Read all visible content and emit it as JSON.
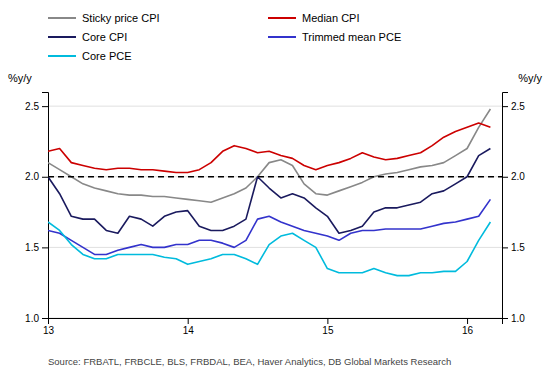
{
  "chart_data": {
    "type": "line",
    "ylabel": "%y/y",
    "y2label": "%y/y",
    "source": "Source: FRBATL, FRBCLE, BLS, FRBDAL, BEA, Haver Analytics, DB Global Markets Research",
    "x": [
      13.0,
      13.083,
      13.167,
      13.25,
      13.333,
      13.417,
      13.5,
      13.583,
      13.667,
      13.75,
      13.833,
      13.917,
      14.0,
      14.083,
      14.167,
      14.25,
      14.333,
      14.417,
      14.5,
      14.583,
      14.667,
      14.75,
      14.833,
      14.917,
      15.0,
      15.083,
      15.167,
      15.25,
      15.333,
      15.417,
      15.5,
      15.583,
      15.667,
      15.75,
      15.833,
      15.917,
      16.0,
      16.083,
      16.167
    ],
    "series": [
      {
        "name": "Sticky price CPI",
        "color": "#888888",
        "values": [
          2.1,
          2.05,
          2.0,
          1.95,
          1.92,
          1.9,
          1.88,
          1.87,
          1.87,
          1.86,
          1.86,
          1.85,
          1.84,
          1.83,
          1.82,
          1.85,
          1.88,
          1.92,
          2.0,
          2.1,
          2.12,
          2.08,
          1.95,
          1.88,
          1.87,
          1.9,
          1.93,
          1.96,
          2.0,
          2.02,
          2.03,
          2.05,
          2.07,
          2.08,
          2.1,
          2.15,
          2.2,
          2.35,
          2.48
        ]
      },
      {
        "name": "Median CPI",
        "color": "#cc0000",
        "values": [
          2.18,
          2.2,
          2.1,
          2.08,
          2.06,
          2.05,
          2.06,
          2.06,
          2.05,
          2.05,
          2.04,
          2.03,
          2.03,
          2.05,
          2.1,
          2.18,
          2.22,
          2.2,
          2.17,
          2.18,
          2.15,
          2.13,
          2.08,
          2.05,
          2.08,
          2.1,
          2.13,
          2.17,
          2.14,
          2.12,
          2.13,
          2.15,
          2.17,
          2.22,
          2.28,
          2.32,
          2.35,
          2.38,
          2.35
        ]
      },
      {
        "name": "Core CPI",
        "color": "#1a1a5e",
        "values": [
          2.0,
          1.88,
          1.72,
          1.7,
          1.7,
          1.62,
          1.6,
          1.72,
          1.7,
          1.65,
          1.72,
          1.75,
          1.76,
          1.65,
          1.62,
          1.62,
          1.65,
          1.7,
          2.0,
          1.92,
          1.85,
          1.88,
          1.85,
          1.78,
          1.72,
          1.6,
          1.62,
          1.65,
          1.75,
          1.78,
          1.78,
          1.8,
          1.82,
          1.88,
          1.9,
          1.95,
          2.0,
          2.15,
          2.2
        ]
      },
      {
        "name": "Trimmed mean PCE",
        "color": "#3333cc",
        "values": [
          1.62,
          1.6,
          1.55,
          1.5,
          1.45,
          1.45,
          1.48,
          1.5,
          1.52,
          1.5,
          1.5,
          1.52,
          1.52,
          1.55,
          1.55,
          1.53,
          1.5,
          1.55,
          1.7,
          1.72,
          1.68,
          1.65,
          1.62,
          1.6,
          1.58,
          1.55,
          1.6,
          1.62,
          1.62,
          1.63,
          1.63,
          1.63,
          1.63,
          1.65,
          1.67,
          1.68,
          1.7,
          1.72,
          1.84
        ]
      },
      {
        "name": "Core PCE",
        "color": "#00bbdd",
        "values": [
          1.68,
          1.62,
          1.52,
          1.45,
          1.42,
          1.42,
          1.45,
          1.45,
          1.45,
          1.45,
          1.43,
          1.42,
          1.38,
          1.4,
          1.42,
          1.45,
          1.45,
          1.42,
          1.38,
          1.52,
          1.58,
          1.6,
          1.55,
          1.5,
          1.35,
          1.32,
          1.32,
          1.32,
          1.35,
          1.32,
          1.3,
          1.3,
          1.32,
          1.32,
          1.33,
          1.33,
          1.4,
          1.55,
          1.68
        ]
      }
    ],
    "hline": 2.0,
    "xlim": [
      13.0,
      16.25
    ],
    "xticks": [
      13,
      14,
      15,
      16
    ],
    "ylim": [
      1.0,
      2.6
    ],
    "yticks": [
      {
        "value": 1.0,
        "label": "1.0"
      },
      1.5,
      {
        "value": 2.0,
        "label": "2.0"
      },
      2.5
    ],
    "y2lim": [
      1.0,
      2.6
    ],
    "y2ticks": [
      {
        "value": 1.0,
        "label": "1.0"
      },
      1.5,
      {
        "value": 2.0,
        "label": "2.0"
      },
      2.5
    ],
    "grid": true,
    "legend": "top"
  }
}
